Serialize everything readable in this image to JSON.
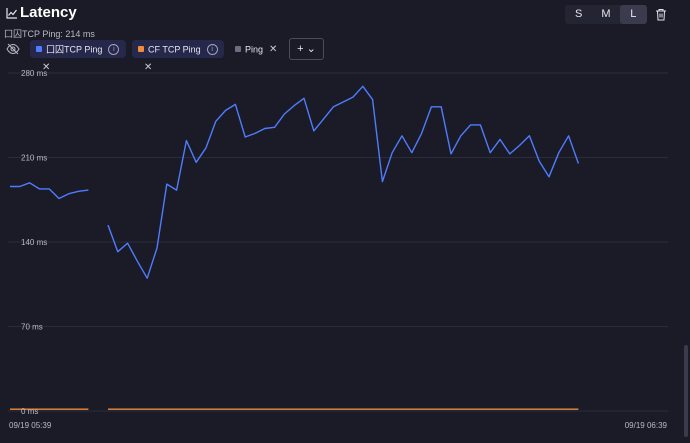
{
  "header": {
    "title": "Latency",
    "size_options": [
      "S",
      "M",
      "L"
    ],
    "selected_size": "L"
  },
  "subtitle": "囗囚TCP Ping: 214 ms",
  "filters": [
    {
      "label": "囗囚TCP Ping",
      "color": "#4f7cff",
      "active": true,
      "has_info": true
    },
    {
      "label": "CF TCP Ping",
      "color": "#f08a3c",
      "active": true,
      "has_info": true
    },
    {
      "label": "Ping",
      "color": "#6b6d80",
      "active": false,
      "has_info": false
    }
  ],
  "add_button": "+ ⌄",
  "chart_data": {
    "type": "line",
    "y_ticks": [
      "280 ms",
      "210 ms",
      "140 ms",
      "70 ms",
      "0 ms"
    ],
    "y_tick_values": [
      280,
      210,
      140,
      70,
      0
    ],
    "ylim": [
      0,
      280
    ],
    "x_ticks": [
      "09/19 05:39",
      "09/19 06:39"
    ],
    "grid": true,
    "series": [
      {
        "name": "囗囚TCP Ping",
        "color": "#4f7cff",
        "segments": [
          [
            186,
            186,
            189,
            184,
            184,
            176,
            180,
            182,
            183
          ],
          [
            154,
            132,
            139,
            124,
            110,
            135,
            188,
            183,
            224,
            206,
            218,
            240,
            249,
            254,
            227,
            230,
            234,
            235,
            246,
            253,
            259,
            232,
            242,
            252,
            256,
            260,
            269,
            258,
            190,
            214,
            228,
            214,
            230,
            252,
            252,
            213,
            228,
            237,
            237,
            214,
            225,
            213,
            220,
            228,
            207,
            194,
            214,
            228,
            205
          ]
        ]
      },
      {
        "name": "CF TCP Ping",
        "color": "#f08a3c",
        "segments": [
          [
            1.5,
            1.5,
            1.5,
            1.5,
            1.5,
            1.5,
            1.5,
            1.5,
            1.5
          ],
          [
            1.5,
            1.5,
            1.5,
            1.5,
            1.5,
            1.5,
            1.5,
            1.5,
            1.5,
            1.5,
            1.5,
            1.5,
            1.5,
            1.5,
            1.5,
            1.5,
            1.5,
            1.5,
            1.5,
            1.5,
            1.5,
            1.5,
            1.5,
            1.5,
            1.5,
            1.5,
            1.5,
            1.5,
            1.5,
            1.5,
            1.5,
            1.5,
            1.5,
            1.5,
            1.5,
            1.5,
            1.5,
            1.5,
            1.5,
            1.5,
            1.5,
            1.5,
            1.5,
            1.5,
            1.5,
            1.5,
            1.5,
            1.5,
            1.5
          ]
        ]
      }
    ]
  }
}
